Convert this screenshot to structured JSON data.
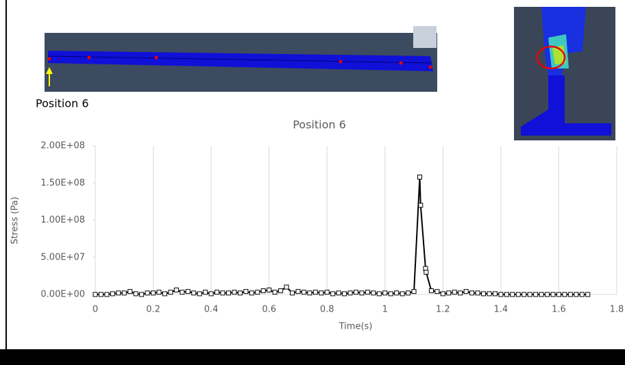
{
  "caption": "Position 6",
  "chart_data": {
    "type": "line",
    "title": "Position 6",
    "x_label": "Time(s)",
    "y_label": "Stress (Pa)",
    "x": [
      0,
      0.02,
      0.04,
      0.06,
      0.08,
      0.1,
      0.12,
      0.14,
      0.16,
      0.18,
      0.2,
      0.22,
      0.24,
      0.26,
      0.28,
      0.3,
      0.32,
      0.34,
      0.36,
      0.38,
      0.4,
      0.42,
      0.44,
      0.46,
      0.48,
      0.5,
      0.52,
      0.54,
      0.56,
      0.58,
      0.6,
      0.62,
      0.64,
      0.66,
      0.68,
      0.7,
      0.72,
      0.74,
      0.76,
      0.78,
      0.8,
      0.82,
      0.84,
      0.86,
      0.88,
      0.9,
      0.92,
      0.94,
      0.96,
      0.98,
      1,
      1.02,
      1.04,
      1.06,
      1.08,
      1.1,
      1.12,
      1.123,
      1.14,
      1.142,
      1.16,
      1.18,
      1.2,
      1.22,
      1.24,
      1.26,
      1.28,
      1.3,
      1.32,
      1.34,
      1.36,
      1.38,
      1.4,
      1.42,
      1.44,
      1.46,
      1.48,
      1.5,
      1.52,
      1.54,
      1.56,
      1.58,
      1.6,
      1.62,
      1.64,
      1.66,
      1.68,
      1.7
    ],
    "series": [
      {
        "color": "#000000",
        "values": [
          0,
          0,
          0,
          1000000,
          2000000,
          2000000,
          4000000,
          1000000,
          0,
          2000000,
          2000000,
          3000000,
          1000000,
          3000000,
          6000000,
          3000000,
          4000000,
          2000000,
          1000000,
          3000000,
          1000000,
          3000000,
          2000000,
          2000000,
          3000000,
          2000000,
          4000000,
          2000000,
          3000000,
          5000000,
          6000000,
          3000000,
          5000000,
          10000000,
          2000000,
          4000000,
          3000000,
          2000000,
          3000000,
          2000000,
          3000000,
          1000000,
          2000000,
          1000000,
          2000000,
          3000000,
          2000000,
          3000000,
          2000000,
          1000000,
          2000000,
          1000000,
          2000000,
          1000000,
          2000000,
          4000000,
          158000000,
          120000000,
          35000000,
          30000000,
          5000000,
          4000000,
          1000000,
          2000000,
          3000000,
          2000000,
          4000000,
          2000000,
          2000000,
          1000000,
          1000000,
          1000000,
          0,
          0,
          0,
          0,
          0,
          0,
          0,
          0,
          0,
          0,
          0,
          0,
          0,
          0,
          0,
          0
        ]
      }
    ],
    "xlim": [
      0,
      1.8
    ],
    "xticks": [
      0,
      0.2,
      0.4,
      0.6,
      0.8,
      1,
      1.2,
      1.4,
      1.6,
      1.8
    ],
    "ylim": [
      0,
      200000000
    ],
    "yticks": [
      {
        "value": 0,
        "label": "0.00E+00"
      },
      {
        "value": 50000000,
        "label": "5.00E+07"
      },
      {
        "value": 100000000,
        "label": "1.00E+08"
      },
      {
        "value": 150000000,
        "label": "1.50E+08"
      },
      {
        "value": 200000000,
        "label": "2.00E+08"
      }
    ],
    "grid": "x"
  }
}
